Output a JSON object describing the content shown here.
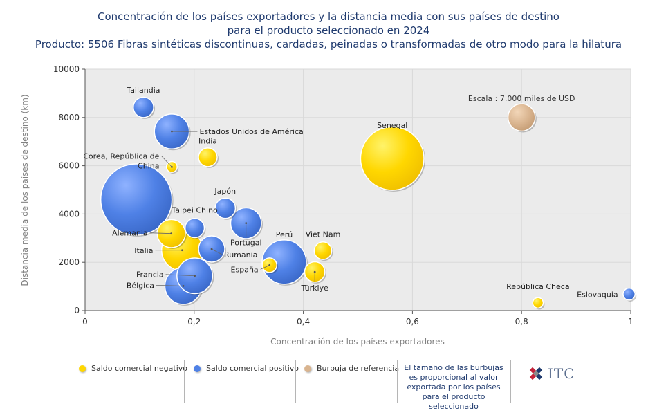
{
  "header": {
    "title_line1": "Concentración de los países exportadores y la distancia media con sus países de destino",
    "title_line2": "para el producto seleccionado en 2024",
    "title_line3": "Producto: 5506 Fibras sintéticas discontinuas, cardadas, peinadas o transformadas de otro modo para la hilatura"
  },
  "chart_data": {
    "type": "scatter",
    "subtype": "bubble",
    "xlabel": "Concentración de los países exportadores",
    "ylabel": "Distancia media de los países de destino (km)",
    "xlim": [
      0,
      1
    ],
    "ylim": [
      0,
      10000
    ],
    "xticks": [
      "0",
      "0,2",
      "0,4",
      "0,6",
      "0,8",
      "1"
    ],
    "xtick_values": [
      0,
      0.2,
      0.4,
      0.6,
      0.8,
      1
    ],
    "yticks": [
      "0",
      "2000",
      "4000",
      "6000",
      "8000",
      "10000"
    ],
    "ytick_values": [
      0,
      2000,
      4000,
      6000,
      8000,
      10000
    ],
    "grid": true,
    "colors": {
      "negative": "#ffd700",
      "positive": "#4f81e6",
      "reference": "#d9b48f",
      "plot_bg": "#ebebeb"
    },
    "reference_bubble": {
      "label": "Escala : 7.000 miles de USD",
      "x": 0.8,
      "y": 8000,
      "size": 7000
    },
    "points": [
      {
        "name": "Tailandia",
        "x": 0.107,
        "y": 8420,
        "size": 3900,
        "group": "positive"
      },
      {
        "name": "Estados Unidos de América",
        "x": 0.159,
        "y": 7420,
        "size": 11500,
        "group": "positive"
      },
      {
        "name": "India",
        "x": 0.225,
        "y": 6350,
        "size": 3300,
        "group": "negative"
      },
      {
        "name": "Corea, República de China",
        "x": 0.159,
        "y": 5950,
        "size": 1100,
        "group": "negative"
      },
      {
        "name": "",
        "x": 0.094,
        "y": 4600,
        "size": 48000,
        "group": "positive"
      },
      {
        "name": "Senegal",
        "x": 0.563,
        "y": 6300,
        "size": 38000,
        "group": "negative"
      },
      {
        "name": "Japón",
        "x": 0.257,
        "y": 4240,
        "size": 3900,
        "group": "positive"
      },
      {
        "name": "Taipei Chino",
        "x": 0.201,
        "y": 3420,
        "size": 3500,
        "group": "positive"
      },
      {
        "name": "Portugal",
        "x": 0.295,
        "y": 3620,
        "size": 9000,
        "group": "positive"
      },
      {
        "name": "Alemania",
        "x": 0.158,
        "y": 3190,
        "size": 7500,
        "group": "negative"
      },
      {
        "name": "Italia",
        "x": 0.178,
        "y": 2500,
        "size": 16000,
        "group": "negative"
      },
      {
        "name": "Rumania",
        "x": 0.232,
        "y": 2550,
        "size": 6500,
        "group": "positive"
      },
      {
        "name": "Perú",
        "x": 0.365,
        "y": 2010,
        "size": 18500,
        "group": "positive"
      },
      {
        "name": "Viet Nam",
        "x": 0.436,
        "y": 2480,
        "size": 2900,
        "group": "negative"
      },
      {
        "name": "España",
        "x": 0.338,
        "y": 1880,
        "size": 2000,
        "group": "negative"
      },
      {
        "name": "Türkiye",
        "x": 0.421,
        "y": 1600,
        "size": 3900,
        "group": "negative"
      },
      {
        "name": "Francia",
        "x": 0.201,
        "y": 1440,
        "size": 12000,
        "group": "positive"
      },
      {
        "name": "Bélgica",
        "x": 0.18,
        "y": 1020,
        "size": 12800,
        "group": "positive"
      },
      {
        "name": "República Checa",
        "x": 0.83,
        "y": 320,
        "size": 1050,
        "group": "negative"
      },
      {
        "name": "Eslovaquia",
        "x": 0.997,
        "y": 680,
        "size": 1350,
        "group": "positive"
      }
    ]
  },
  "legend": {
    "negative_label": "Saldo comercial negativo",
    "positive_label": "Saldo comercial positivo",
    "reference_label": "Burbuja de referencia",
    "note_line1": "El tamaño de las burbujas",
    "note_line2": "es proporcional al valor",
    "note_line3": "exportada por los países",
    "note_line4": "para el producto seleccionado",
    "logo_text": "ITC"
  }
}
